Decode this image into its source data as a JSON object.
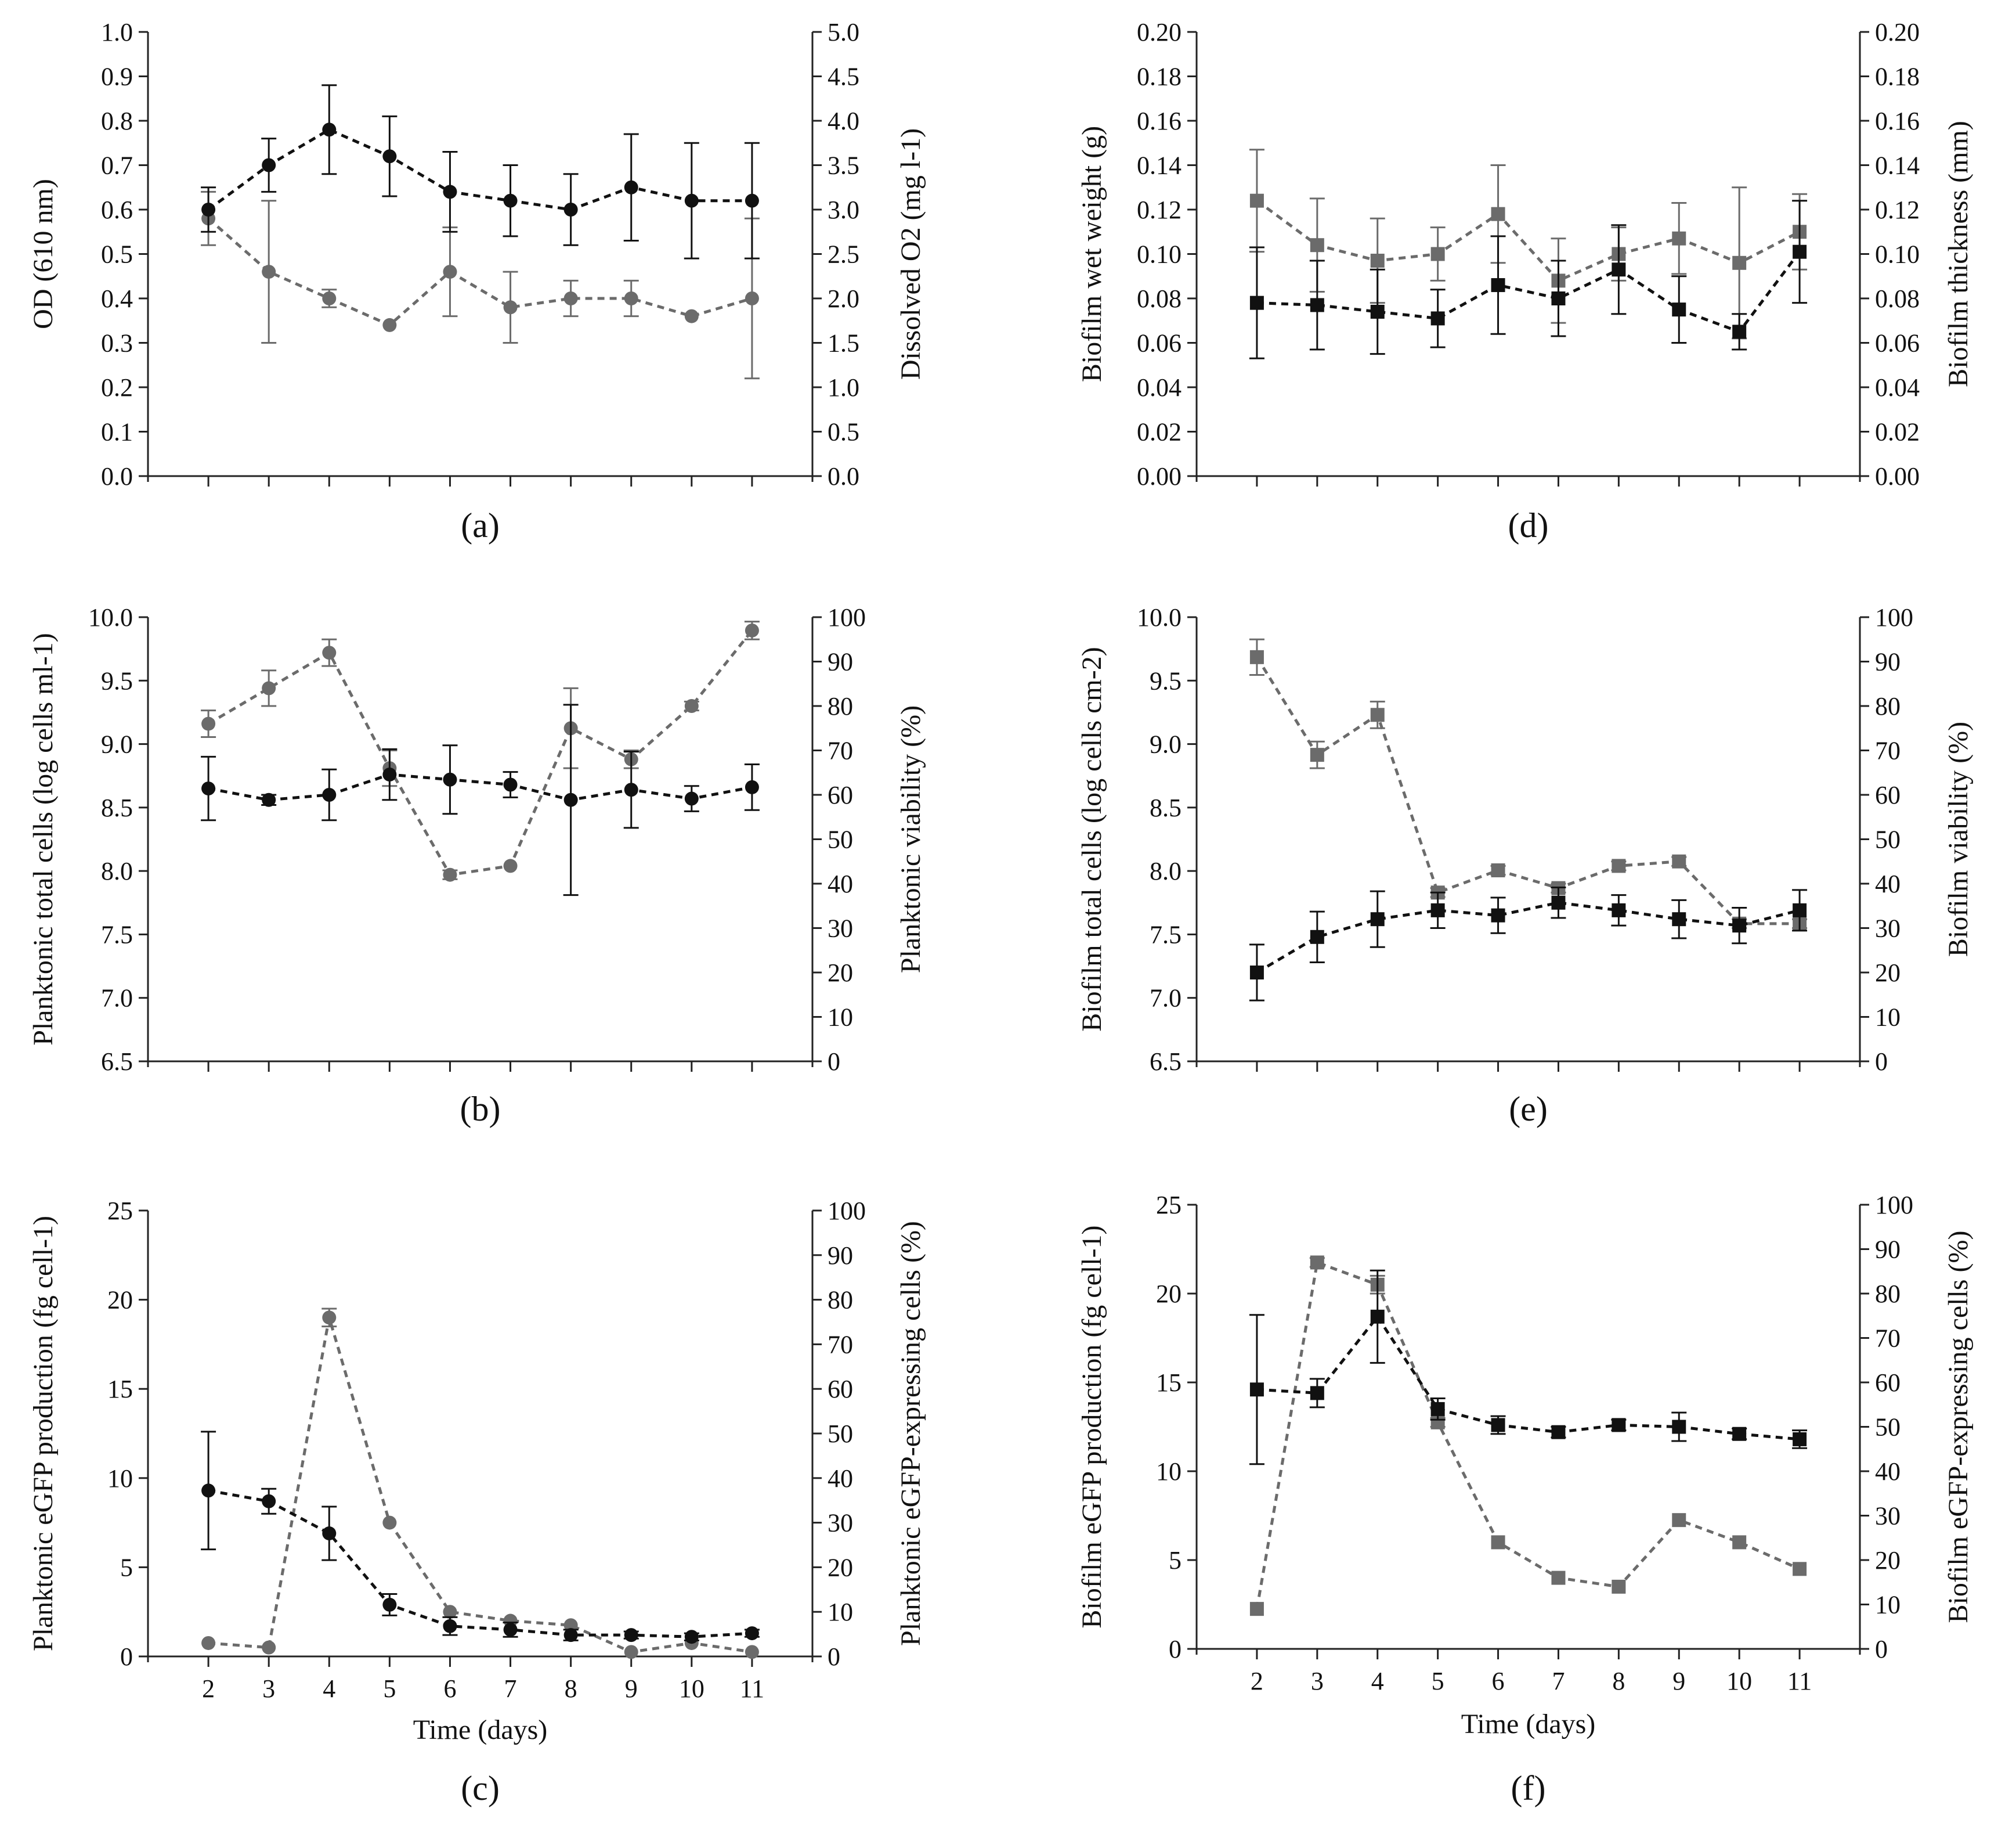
{
  "colors": {
    "series_black": "#111111",
    "series_grey": "#6b6b6b"
  },
  "chart_data": [
    {
      "id": "a",
      "type": "line",
      "panel_label": "(a)",
      "ylabel_left": "OD (610 nm)",
      "ylabel_right": "Dissolved O2 (mg l-1)",
      "ylim_left": [
        0,
        1.0
      ],
      "ylim_right": [
        0,
        5.0
      ],
      "yticks_left": [
        "0.0",
        "0.1",
        "0.2",
        "0.3",
        "0.4",
        "0.5",
        "0.6",
        "0.7",
        "0.8",
        "0.9",
        "1.0"
      ],
      "yticks_right": [
        "0.0",
        "0.5",
        "1.0",
        "1.5",
        "2.0",
        "2.5",
        "3.0",
        "3.5",
        "4.0",
        "4.5",
        "5.0"
      ],
      "x": [
        2,
        3,
        4,
        5,
        6,
        7,
        8,
        9,
        10,
        11
      ],
      "xticks": [],
      "xlabel": "",
      "series": [
        {
          "name": "OD (610 nm)",
          "axis": "left",
          "marker": "circle",
          "color": "#111111",
          "values": [
            0.6,
            0.7,
            0.78,
            0.72,
            0.64,
            0.62,
            0.6,
            0.65,
            0.62,
            0.62
          ],
          "errors": [
            0.05,
            0.06,
            0.1,
            0.09,
            0.09,
            0.08,
            0.08,
            0.12,
            0.13,
            0.13
          ]
        },
        {
          "name": "Dissolved O2",
          "axis": "right",
          "marker": "circle",
          "color": "#6b6b6b",
          "values": [
            2.9,
            2.3,
            2.0,
            1.7,
            2.3,
            1.9,
            2.0,
            2.0,
            1.8,
            2.0
          ],
          "errors": [
            0.3,
            0.8,
            0.1,
            0.0,
            0.5,
            0.4,
            0.2,
            0.2,
            0.0,
            0.9
          ]
        }
      ]
    },
    {
      "id": "b",
      "type": "line",
      "panel_label": "(b)",
      "ylabel_left": "Planktonic total cells (log cells ml-1)",
      "ylabel_right": "Planktonic viability (%)",
      "ylim_left": [
        6.5,
        10.0
      ],
      "ylim_right": [
        0,
        100
      ],
      "yticks_left": [
        "6.5",
        "7.0",
        "7.5",
        "8.0",
        "8.5",
        "9.0",
        "9.5",
        "10.0"
      ],
      "yticks_right": [
        "0",
        "10",
        "20",
        "30",
        "40",
        "50",
        "60",
        "70",
        "80",
        "90",
        "100"
      ],
      "x": [
        2,
        3,
        4,
        5,
        6,
        7,
        8,
        9,
        10,
        11
      ],
      "xticks": [],
      "xlabel": "",
      "series": [
        {
          "name": "Planktonic total cells",
          "axis": "left",
          "marker": "circle",
          "color": "#111111",
          "values": [
            8.65,
            8.56,
            8.6,
            8.76,
            8.72,
            8.68,
            8.56,
            8.64,
            8.57,
            8.66
          ],
          "errors": [
            0.25,
            0.04,
            0.2,
            0.2,
            0.27,
            0.1,
            0.75,
            0.3,
            0.1,
            0.18
          ]
        },
        {
          "name": "Planktonic viability",
          "axis": "right",
          "marker": "circle",
          "color": "#6b6b6b",
          "values": [
            76,
            84,
            92,
            66,
            42,
            44,
            75,
            68,
            80,
            97
          ],
          "errors": [
            3,
            4,
            3,
            4,
            1,
            0,
            9,
            2,
            1,
            2
          ]
        }
      ]
    },
    {
      "id": "c",
      "type": "line",
      "panel_label": "(c)",
      "ylabel_left": "Planktonic eGFP production (fg cell-1)",
      "ylabel_right": "Planktonic eGFP-expressing cells (%)",
      "ylim_left": [
        0,
        25
      ],
      "ylim_right": [
        0,
        100
      ],
      "yticks_left": [
        "0",
        "5",
        "10",
        "15",
        "20",
        "25"
      ],
      "yticks_right": [
        "0",
        "10",
        "20",
        "30",
        "40",
        "50",
        "60",
        "70",
        "80",
        "90",
        "100"
      ],
      "x": [
        2,
        3,
        4,
        5,
        6,
        7,
        8,
        9,
        10,
        11
      ],
      "xticks": [
        "2",
        "3",
        "4",
        "5",
        "6",
        "7",
        "8",
        "9",
        "10",
        "11"
      ],
      "xlabel": "Time (days)",
      "series": [
        {
          "name": "Planktonic eGFP production",
          "axis": "left",
          "marker": "circle",
          "color": "#111111",
          "values": [
            9.3,
            8.7,
            6.9,
            2.9,
            1.7,
            1.5,
            1.2,
            1.2,
            1.1,
            1.3
          ],
          "errors": [
            3.3,
            0.7,
            1.5,
            0.6,
            0.5,
            0.4,
            0.3,
            0.2,
            0.2,
            0.2
          ]
        },
        {
          "name": "Planktonic eGFP-expressing cells",
          "axis": "right",
          "marker": "circle",
          "color": "#6b6b6b",
          "values": [
            3,
            2,
            76,
            30,
            10,
            8,
            7,
            1,
            3,
            1
          ],
          "errors": [
            0,
            0,
            2,
            0,
            0,
            0,
            0,
            0,
            0,
            0
          ]
        }
      ]
    },
    {
      "id": "d",
      "type": "line",
      "panel_label": "(d)",
      "ylabel_left": "Biofilm wet weight (g)",
      "ylabel_right": "Biofilm thickness (mm)",
      "ylim_left": [
        0,
        0.2
      ],
      "ylim_right": [
        0,
        0.2
      ],
      "yticks_left": [
        "0.00",
        "0.02",
        "0.04",
        "0.06",
        "0.08",
        "0.10",
        "0.12",
        "0.14",
        "0.16",
        "0.18",
        "0.20"
      ],
      "yticks_right": [
        "0.00",
        "0.02",
        "0.04",
        "0.06",
        "0.08",
        "0.10",
        "0.12",
        "0.14",
        "0.16",
        "0.18",
        "0.20"
      ],
      "x": [
        2,
        3,
        4,
        5,
        6,
        7,
        8,
        9,
        10,
        11
      ],
      "xticks": [],
      "xlabel": "",
      "series": [
        {
          "name": "Biofilm wet weight",
          "axis": "left",
          "marker": "square",
          "color": "#111111",
          "values": [
            0.078,
            0.077,
            0.074,
            0.071,
            0.086,
            0.08,
            0.093,
            0.075,
            0.065,
            0.101
          ],
          "errors": [
            0.025,
            0.02,
            0.019,
            0.013,
            0.022,
            0.017,
            0.02,
            0.015,
            0.008,
            0.023
          ]
        },
        {
          "name": "Biofilm thickness",
          "axis": "right",
          "marker": "square",
          "color": "#6b6b6b",
          "values": [
            0.124,
            0.104,
            0.097,
            0.1,
            0.118,
            0.088,
            0.1,
            0.107,
            0.096,
            0.11
          ],
          "errors": [
            0.023,
            0.021,
            0.019,
            0.012,
            0.022,
            0.019,
            0.012,
            0.016,
            0.034,
            0.017
          ]
        }
      ]
    },
    {
      "id": "e",
      "type": "line",
      "panel_label": "(e)",
      "ylabel_left": "Biofilm total cells (log cells cm-2)",
      "ylabel_right": "Biofilm viability (%)",
      "ylim_left": [
        6.5,
        10.0
      ],
      "ylim_right": [
        0,
        100
      ],
      "yticks_left": [
        "6.5",
        "7.0",
        "7.5",
        "8.0",
        "8.5",
        "9.0",
        "9.5",
        "10.0"
      ],
      "yticks_right": [
        "0",
        "10",
        "20",
        "30",
        "40",
        "50",
        "60",
        "70",
        "80",
        "90",
        "100"
      ],
      "x": [
        2,
        3,
        4,
        5,
        6,
        7,
        8,
        9,
        10,
        11
      ],
      "xticks": [],
      "xlabel": "",
      "series": [
        {
          "name": "Biofilm total cells",
          "axis": "left",
          "marker": "square",
          "color": "#111111",
          "values": [
            7.2,
            7.48,
            7.62,
            7.69,
            7.65,
            7.75,
            7.69,
            7.62,
            7.57,
            7.69
          ],
          "errors": [
            0.22,
            0.2,
            0.22,
            0.14,
            0.14,
            0.12,
            0.12,
            0.15,
            0.14,
            0.16
          ]
        },
        {
          "name": "Biofilm viability",
          "axis": "right",
          "marker": "square",
          "color": "#6b6b6b",
          "values": [
            91,
            69,
            78,
            38,
            43,
            39,
            44,
            45,
            31,
            31
          ],
          "errors": [
            4,
            3,
            3,
            1,
            1,
            1,
            1,
            1,
            1,
            1
          ]
        }
      ]
    },
    {
      "id": "f",
      "type": "line",
      "panel_label": "(f)",
      "ylabel_left": "Biofilm eGFP production (fg cell-1)",
      "ylabel_right": "Biofilm eGFP-expressing cells (%)",
      "ylim_left": [
        0,
        25
      ],
      "ylim_right": [
        0,
        100
      ],
      "yticks_left": [
        "0",
        "5",
        "10",
        "15",
        "20",
        "25"
      ],
      "yticks_right": [
        "0",
        "10",
        "20",
        "30",
        "40",
        "50",
        "60",
        "70",
        "80",
        "90",
        "100"
      ],
      "x": [
        2,
        3,
        4,
        5,
        6,
        7,
        8,
        9,
        10,
        11
      ],
      "xticks": [
        "2",
        "3",
        "4",
        "5",
        "6",
        "7",
        "8",
        "9",
        "10",
        "11"
      ],
      "xlabel": "Time (days)",
      "series": [
        {
          "name": "Biofilm eGFP production",
          "axis": "left",
          "marker": "square",
          "color": "#111111",
          "values": [
            14.6,
            14.4,
            18.7,
            13.5,
            12.6,
            12.2,
            12.6,
            12.5,
            12.1,
            11.8
          ],
          "errors": [
            4.2,
            0.8,
            2.6,
            0.6,
            0.5,
            0.3,
            0.3,
            0.8,
            0.3,
            0.5
          ]
        },
        {
          "name": "Biofilm eGFP-expressing cells",
          "axis": "right",
          "marker": "square",
          "color": "#6b6b6b",
          "values": [
            9,
            87,
            82,
            51,
            24,
            16,
            14,
            29,
            24,
            18
          ],
          "errors": [
            0,
            1,
            2,
            1,
            0,
            0,
            0,
            0,
            0,
            0
          ]
        }
      ]
    }
  ]
}
